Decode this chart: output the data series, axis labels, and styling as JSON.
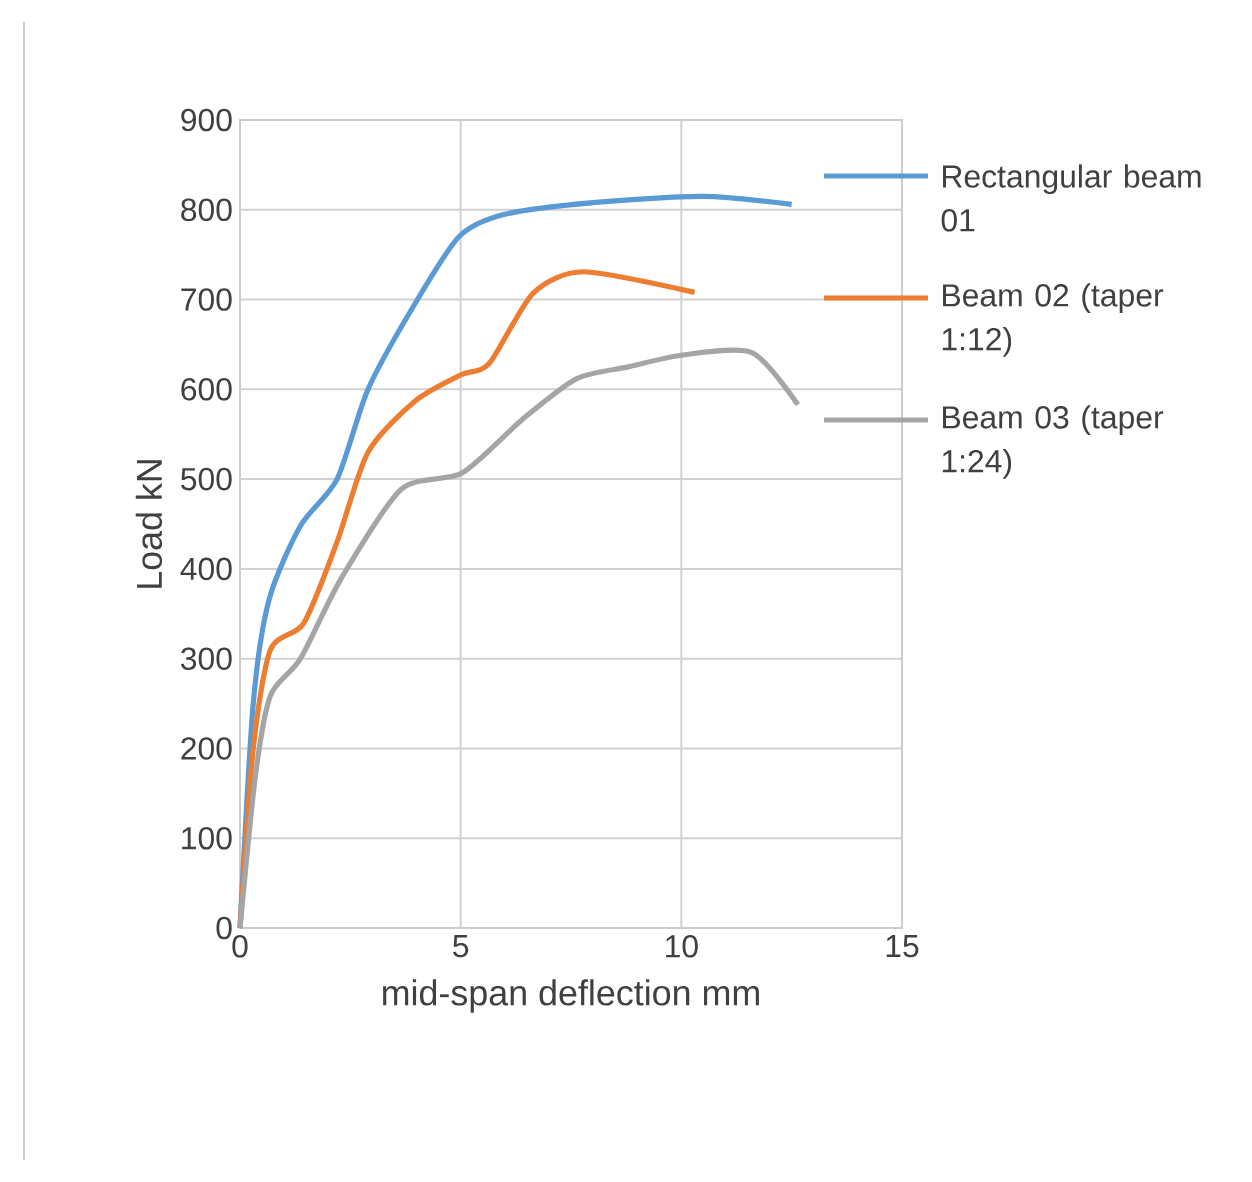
{
  "chart_data": {
    "type": "line",
    "xlabel": "mid-span deflection  mm",
    "ylabel": "Load  kN",
    "xlim": [
      0,
      15
    ],
    "ylim": [
      0,
      900
    ],
    "xticks": [
      0,
      5,
      10,
      15
    ],
    "yticks": [
      0,
      100,
      200,
      300,
      400,
      500,
      600,
      700,
      800,
      900
    ],
    "grid": true,
    "legend": "top right",
    "marker": "none",
    "line_style": "solid",
    "series": [
      {
        "name": "Rectangular beam 01",
        "color": "#5b9bd5",
        "x": [
          0,
          0.3,
          0.66,
          1.37,
          2.2,
          2.9,
          3.9,
          4.96,
          6,
          8,
          10.5,
          12.5
        ],
        "values": [
          0,
          250,
          366,
          448,
          500,
          600,
          690,
          770,
          795,
          808,
          815,
          806
        ]
      },
      {
        "name": "Beam 02 (taper 1:12)",
        "color": "#ed7d31",
        "x": [
          0,
          0.3,
          0.69,
          1.45,
          2.2,
          2.9,
          3.97,
          5,
          5.65,
          6.64,
          7.79,
          10.3
        ],
        "values": [
          0,
          200,
          310,
          340,
          430,
          530,
          587,
          616,
          629,
          707,
          731,
          708
        ]
      },
      {
        "name": "Beam 03 (taper 1:24)",
        "color": "#a5a5a5",
        "x": [
          0,
          0.35,
          0.69,
          1.37,
          2.3,
          3.66,
          5.04,
          6.41,
          7.63,
          8.8,
          10,
          11.6,
          12.64
        ],
        "values": [
          0,
          170,
          259,
          300,
          390,
          489,
          507,
          567,
          612,
          625,
          638,
          641,
          583
        ]
      }
    ]
  }
}
